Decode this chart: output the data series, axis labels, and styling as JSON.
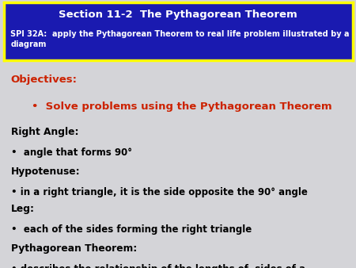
{
  "header_bg": "#1a1ab0",
  "header_border": "#ffff00",
  "header_title": "Section 11-2  The Pythagorean Theorem",
  "header_subtitle": "SPI 32A:  apply the Pythagorean Theorem to real life problem illustrated by a\ndiagram",
  "header_title_color": "#ffffff",
  "header_subtitle_color": "#ffffff",
  "body_bg": "#d4d4d8",
  "objectives_label": "Objectives:",
  "objectives_color": "#cc2200",
  "bullet_objectives": "•  Solve problems using the Pythagorean Theorem",
  "sections": [
    {
      "label": "Right Angle:",
      "bullet": "•  angle that forms 90°"
    },
    {
      "label": "Hypotenuse:",
      "bullet": "• in a right triangle, it is the side opposite the 90° angle"
    },
    {
      "label": "Leg:",
      "bullet": "•  each of the sides forming the right triangle"
    },
    {
      "label": "Pythagorean Theorem:",
      "bullet": "• describes the relationship of the lengths of  sides of a\n  right triangle."
    }
  ],
  "header_title_fontsize": 9.5,
  "header_subtitle_fontsize": 7.0,
  "objectives_fontsize": 9.5,
  "body_fontsize": 8.5,
  "body_label_fontsize": 8.8
}
